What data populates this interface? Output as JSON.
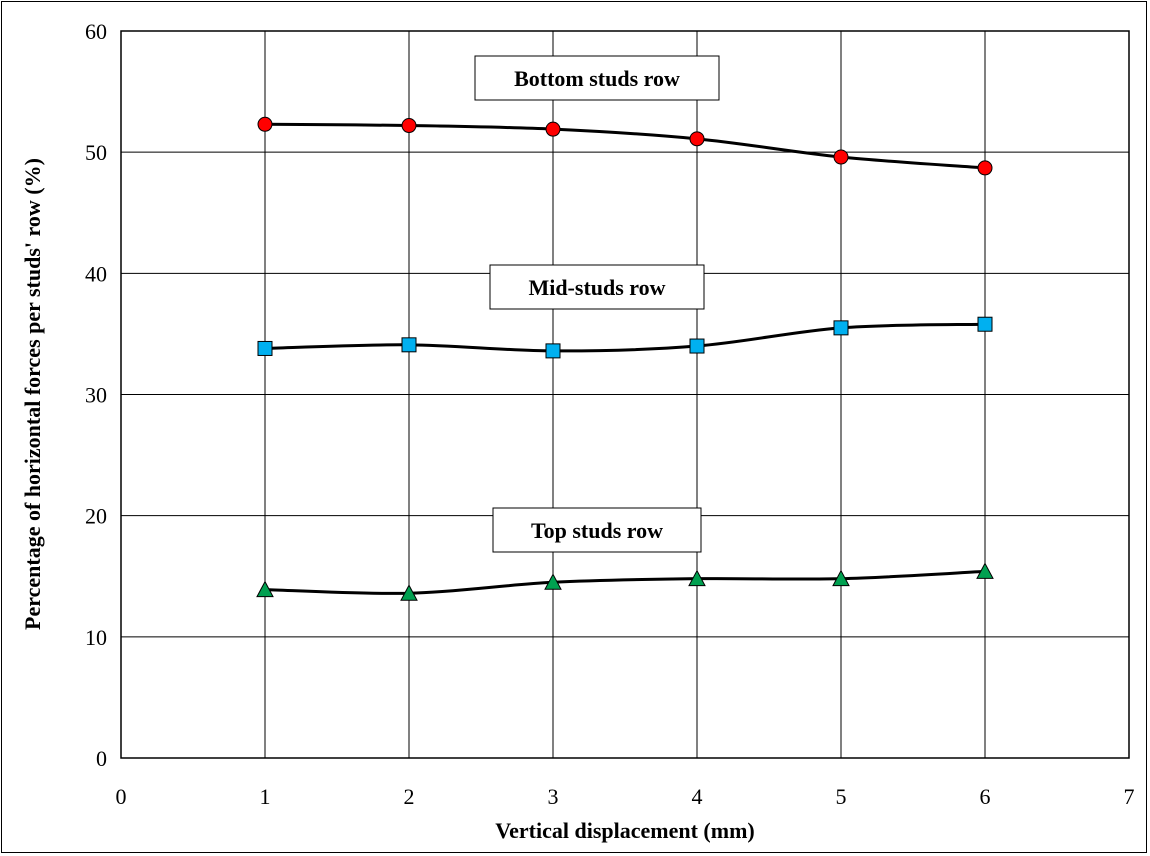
{
  "chart_data": {
    "type": "line",
    "title": "",
    "xlabel": "Vertical displacement (mm)",
    "ylabel": "Percentage of horizontal forces per studs' row (%)",
    "xlim": [
      0,
      7
    ],
    "ylim": [
      0,
      60
    ],
    "x_ticks": [
      "0",
      "1",
      "2",
      "3",
      "4",
      "5",
      "6",
      "7"
    ],
    "y_ticks": [
      "0",
      "10",
      "20",
      "30",
      "40",
      "50",
      "60"
    ],
    "grid": true,
    "x": [
      1,
      2,
      3,
      4,
      5,
      6
    ],
    "series": [
      {
        "name": "Bottom studs row",
        "marker": "circle",
        "color": "#ff0000",
        "values": [
          52.3,
          52.2,
          51.9,
          51.1,
          49.6,
          48.7
        ]
      },
      {
        "name": "Mid-studs row",
        "marker": "square",
        "color": "#00b0f0",
        "values": [
          33.8,
          34.1,
          33.6,
          34.0,
          35.5,
          35.8
        ]
      },
      {
        "name": "Top studs row",
        "marker": "triangle",
        "color": "#00a050",
        "values": [
          13.9,
          13.6,
          14.5,
          14.8,
          14.8,
          15.4
        ]
      }
    ]
  }
}
